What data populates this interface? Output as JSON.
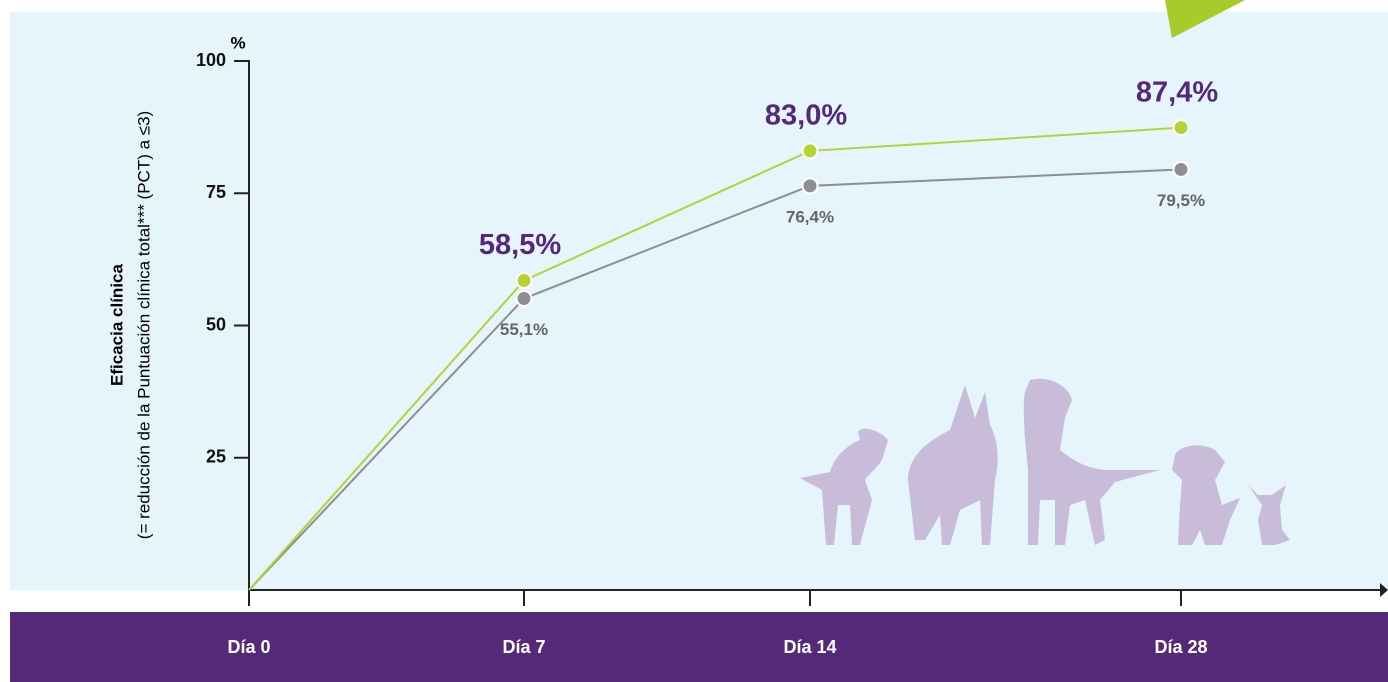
{
  "chart_data": {
    "type": "line",
    "y_unit": "%",
    "ylabel_bold": "Eficacia clínica",
    "ylabel": "(= reducción de la Puntuación clínica total*** (PCT) a ≤3)",
    "categories": [
      "Día 0",
      "Día 7",
      "Día 14",
      "Día 28"
    ],
    "series": [
      {
        "color": "#b5d334",
        "label_color": "#55297a",
        "values": [
          0,
          58.5,
          83.0,
          87.4
        ],
        "value_labels": [
          null,
          "58,5%",
          "83,0%",
          "87,4%"
        ]
      },
      {
        "color": "#8e8e93",
        "label_color": "#666666",
        "values": [
          0,
          55.1,
          76.4,
          79.5
        ],
        "value_labels": [
          null,
          "55,1%",
          "76,4%",
          "79,5%"
        ]
      }
    ],
    "ylim": [
      0,
      100
    ],
    "yticks": [
      25,
      50,
      75,
      100
    ]
  }
}
